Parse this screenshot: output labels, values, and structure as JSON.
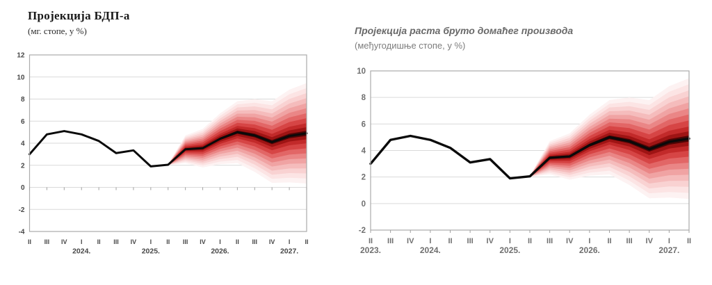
{
  "chart_data": [
    {
      "type": "line",
      "subtype": "fan-projection",
      "title": "Пројекција БДП-а",
      "subtitle": "(мг. стопе, у %)",
      "x_tick_labels": [
        "II",
        "III",
        "IV",
        "I",
        "II",
        "III",
        "IV",
        "I",
        "II",
        "III",
        "IV",
        "I",
        "II",
        "III",
        "IV",
        "I",
        "II"
      ],
      "year_labels": [
        {
          "label": "2024.",
          "tick_index": 3
        },
        {
          "label": "2025.",
          "tick_index": 7
        },
        {
          "label": "2026.",
          "tick_index": 11
        },
        {
          "label": "2027.",
          "tick_index": 15
        }
      ],
      "y_ticks": [
        12,
        10,
        8,
        6,
        4,
        2,
        0,
        -2,
        -4
      ],
      "ylim": [
        -4,
        12
      ],
      "grid": true,
      "legend": "none",
      "series": [
        {
          "name": "outturn",
          "values": [
            3.0,
            4.8,
            5.1,
            4.8,
            4.2,
            3.1,
            3.35,
            1.9,
            2.05
          ]
        },
        {
          "name": "central-projection",
          "values": [
            2.05,
            3.45,
            3.55,
            4.4,
            5.0,
            4.7,
            4.1,
            4.65,
            4.9
          ]
        }
      ],
      "projection": {
        "start_index": 8,
        "half_widths": [
          0.04,
          1.25,
          1.75,
          2.3,
          2.8,
          3.3,
          3.7,
          4.2,
          4.55
        ]
      }
    },
    {
      "type": "line",
      "subtype": "fan-projection",
      "title": "Пројекција раста бруто домаћег производа",
      "subtitle": "(међугодишње стопе, у %)",
      "x_tick_labels": [
        "II",
        "III",
        "IV",
        "I",
        "II",
        "III",
        "IV",
        "I",
        "II",
        "III",
        "IV",
        "I",
        "II",
        "III",
        "IV",
        "I",
        "II"
      ],
      "year_labels": [
        {
          "label": "2023.",
          "tick_index": 0
        },
        {
          "label": "2024.",
          "tick_index": 3
        },
        {
          "label": "2025.",
          "tick_index": 7
        },
        {
          "label": "2026.",
          "tick_index": 11
        },
        {
          "label": "2027.",
          "tick_index": 15
        }
      ],
      "y_ticks": [
        10,
        8,
        6,
        4,
        2,
        0,
        -2
      ],
      "ylim": [
        -2,
        10
      ],
      "grid": true,
      "legend": "none",
      "series": [
        {
          "name": "outturn",
          "values": [
            3.0,
            4.8,
            5.1,
            4.8,
            4.2,
            3.1,
            3.35,
            1.9,
            2.05
          ]
        },
        {
          "name": "central-projection",
          "values": [
            2.05,
            3.45,
            3.55,
            4.4,
            5.0,
            4.7,
            4.1,
            4.65,
            4.9
          ]
        }
      ],
      "projection": {
        "start_index": 8,
        "half_widths": [
          0.04,
          1.25,
          1.75,
          2.3,
          2.8,
          3.3,
          3.7,
          4.2,
          4.55
        ]
      }
    }
  ],
  "style": {
    "background": "#ffffff",
    "line_color": "#0a0a0a",
    "grid_color": "#d9d9d9",
    "border_color": "#ababab",
    "tick_color": "#9f9f9f",
    "fan_fractions": [
      1.0,
      0.9,
      0.8,
      0.7,
      0.6,
      0.5,
      0.4,
      0.3,
      0.2,
      0.12,
      0.05
    ],
    "fan_colors": [
      "#fdf2f2",
      "#fce4e4",
      "#f9d2d2",
      "#f5bcbc",
      "#f0a3a3",
      "#ea8686",
      "#e26666",
      "#d64545",
      "#c22a2a",
      "#9e1414",
      "#4a0505"
    ]
  }
}
